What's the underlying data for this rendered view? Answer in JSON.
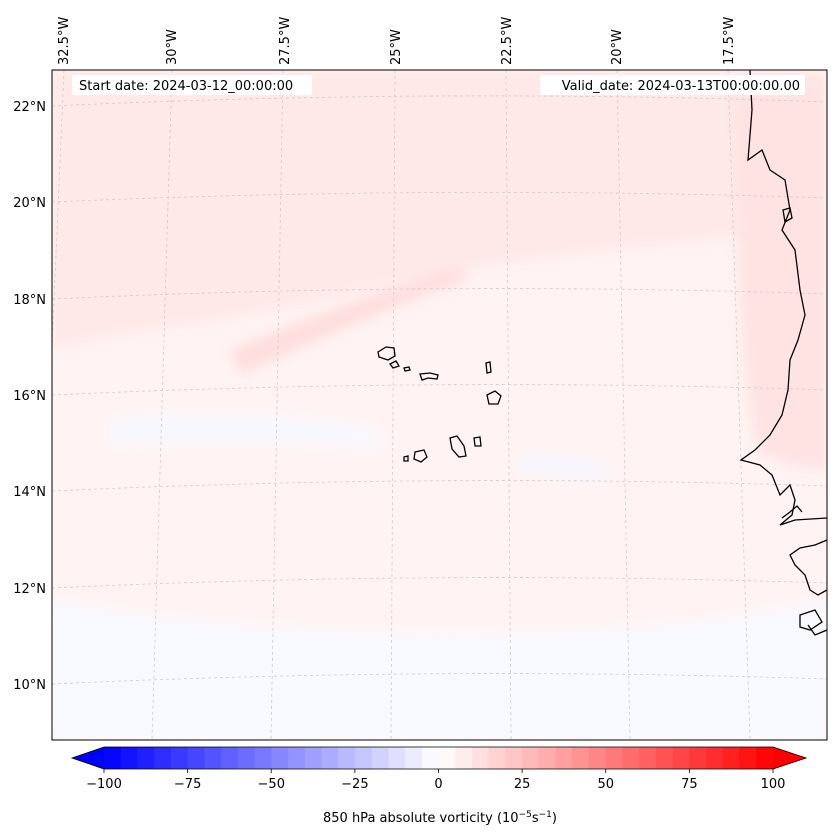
{
  "map": {
    "start_date_label": "Start date: 2024-03-12_00:00:00",
    "valid_date_label": "Valid_date: 2024-03-13T00:00:00.00",
    "longitude_labels": [
      "32.5°W",
      "30°W",
      "27.5°W",
      "25°W",
      "22.5°W",
      "20°W",
      "17.5°W"
    ],
    "latitude_labels": [
      "22°N",
      "20°N",
      "18°N",
      "16°N",
      "14°N",
      "12°N",
      "10°N"
    ],
    "coastline_color": "#000000",
    "gridline_color": "#cccccc"
  },
  "colorbar": {
    "label_main": "850 hPa absolute vorticity (10",
    "label_exp1": "−5",
    "label_mid": "s",
    "label_exp2": "−1",
    "label_end": ")",
    "min": -100,
    "max": 100,
    "ticks": [
      "−100",
      "−75",
      "−50",
      "−25",
      "0",
      "25",
      "50",
      "75",
      "100"
    ],
    "colormap": "bwr",
    "colors": {
      "low": "#0000ff",
      "mid": "#ffffff",
      "high": "#ff0000"
    }
  }
}
